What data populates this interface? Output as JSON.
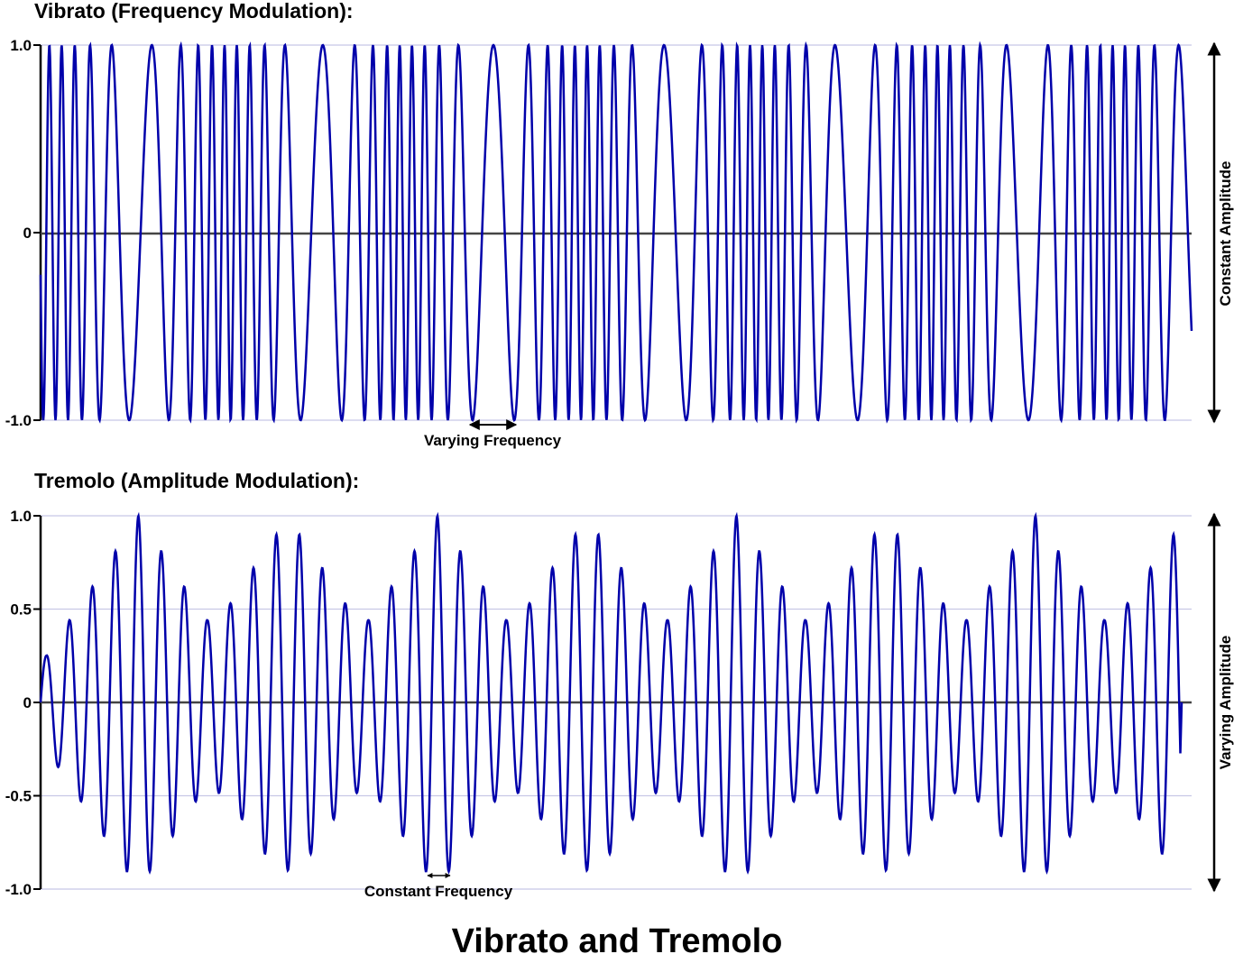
{
  "title": "Vibrato and Tremolo",
  "colors": {
    "wave": "#0000aa",
    "grid": "#c8c8e6",
    "axis": "#444444",
    "text": "#000000"
  },
  "chart_data": [
    {
      "type": "line",
      "title": "Vibrato (Frequency Modulation):",
      "ylim": [
        -1.0,
        1.0
      ],
      "y_ticks": [
        "1.0",
        "0",
        "-1.0"
      ],
      "y_tick_values": [
        1.0,
        0,
        -1.0
      ],
      "grid": true,
      "amplitude": 1.0,
      "annotation": "Varying Frequency",
      "side_label": "Constant Amplitude"
    },
    {
      "type": "line",
      "title": "Tremolo (Amplitude Modulation):",
      "ylim": [
        -1.0,
        1.0
      ],
      "y_ticks": [
        "1.0",
        "0.5",
        "0",
        "-0.5",
        "-1.0"
      ],
      "y_tick_values": [
        1.0,
        0.5,
        0,
        -0.5,
        -1.0
      ],
      "grid": true,
      "peak_amplitudes": [
        0.25,
        0.44,
        0.62,
        0.81,
        1.0,
        0.81,
        0.62,
        0.44,
        0.53,
        0.72,
        0.9,
        0.9,
        0.72,
        0.53,
        0.44,
        0.62,
        0.81,
        1.0,
        0.81,
        0.62,
        0.44,
        0.53,
        0.72,
        0.9,
        0.9,
        0.72,
        0.53,
        0.44,
        0.62,
        0.81,
        1.0,
        0.81,
        0.62,
        0.44,
        0.53,
        0.72,
        0.9,
        0.9,
        0.72,
        0.53,
        0.44,
        0.62,
        0.81,
        1.0,
        0.81,
        0.62,
        0.44,
        0.53,
        0.72,
        0.9
      ],
      "annotation": "Constant Frequency",
      "side_label": "Varying Amplitude"
    }
  ]
}
